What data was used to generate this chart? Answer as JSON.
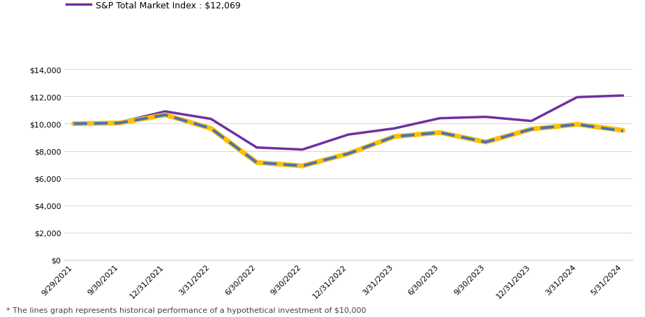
{
  "dates": [
    "9/29/2021",
    "9/30/2021",
    "12/31/2021",
    "3/31/2022",
    "6/30/2022",
    "9/30/2022",
    "12/31/2022",
    "3/31/2023",
    "6/30/2023",
    "9/30/2023",
    "12/31/2023",
    "3/31/2024",
    "5/31/2024"
  ],
  "etf": [
    10000,
    10050,
    10650,
    9650,
    7150,
    6900,
    7800,
    9050,
    9350,
    8650,
    9600,
    9950,
    9460
  ],
  "index": [
    10000,
    10050,
    10650,
    9650,
    7150,
    6900,
    7800,
    9050,
    9350,
    8650,
    9600,
    9950,
    9512
  ],
  "market": [
    10000,
    10100,
    10900,
    10350,
    8250,
    8100,
    9200,
    9650,
    10400,
    10500,
    10200,
    11950,
    12069
  ],
  "etf_color": "#4472C4",
  "index_color": "#FFC000",
  "market_color": "#7030A0",
  "market_label": "S&P Total Market Index : $12,069",
  "ylabel_ticks": [
    0,
    2000,
    4000,
    6000,
    8000,
    10000,
    12000,
    14000
  ],
  "footnote": "* The lines graph represents historical performance of a hypothetical investment of $10,000",
  "background_color": "#ffffff",
  "legend_fontsize": 9,
  "tick_fontsize": 8
}
